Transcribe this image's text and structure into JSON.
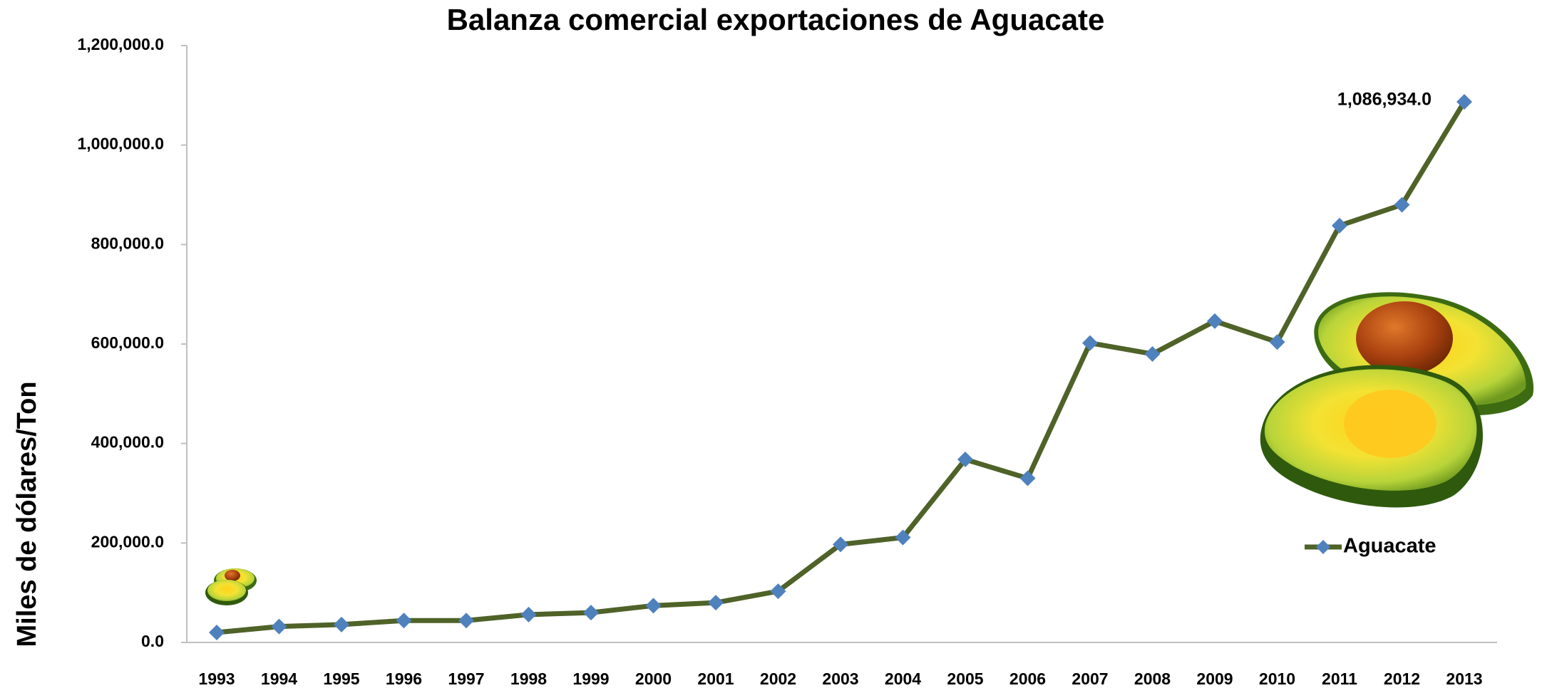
{
  "chart_data": {
    "type": "line",
    "title": "Balanza comercial exportaciones de Aguacate",
    "y_label": "Miles  de  dólares/Ton",
    "categories": [
      "1993",
      "1994",
      "1995",
      "1996",
      "1997",
      "1998",
      "1999",
      "2000",
      "2001",
      "2002",
      "2003",
      "2004",
      "2005",
      "2006",
      "2007",
      "2008",
      "2009",
      "2010",
      "2011",
      "2012",
      "2013"
    ],
    "series": [
      {
        "name": "Aguacate",
        "color": "#4f6228",
        "marker_color": "#4f81bd",
        "values": [
          20000,
          32000,
          36000,
          44000,
          44000,
          56000,
          60000,
          74000,
          80000,
          103000,
          197000,
          211000,
          368000,
          330000,
          602000,
          580000,
          646000,
          604000,
          838000,
          880000,
          1086934
        ],
        "value_labels": [
          null,
          null,
          null,
          null,
          null,
          null,
          null,
          null,
          null,
          null,
          null,
          null,
          null,
          null,
          null,
          null,
          null,
          null,
          null,
          null,
          "1,086,934.0"
        ]
      }
    ],
    "ylim": [
      0,
      1200000
    ],
    "yticks": [
      {
        "value": 0,
        "label": "0.0"
      },
      {
        "value": 200000,
        "label": "200,000.0"
      },
      {
        "value": 400000,
        "label": "400,000.0"
      },
      {
        "value": 600000,
        "label": "600,000.0"
      },
      {
        "value": 800000,
        "label": "800,000.0"
      },
      {
        "value": 1000000,
        "label": "1,000,000.0"
      },
      {
        "value": 1200000,
        "label": "1,200,000.0"
      }
    ],
    "legend": "right"
  }
}
